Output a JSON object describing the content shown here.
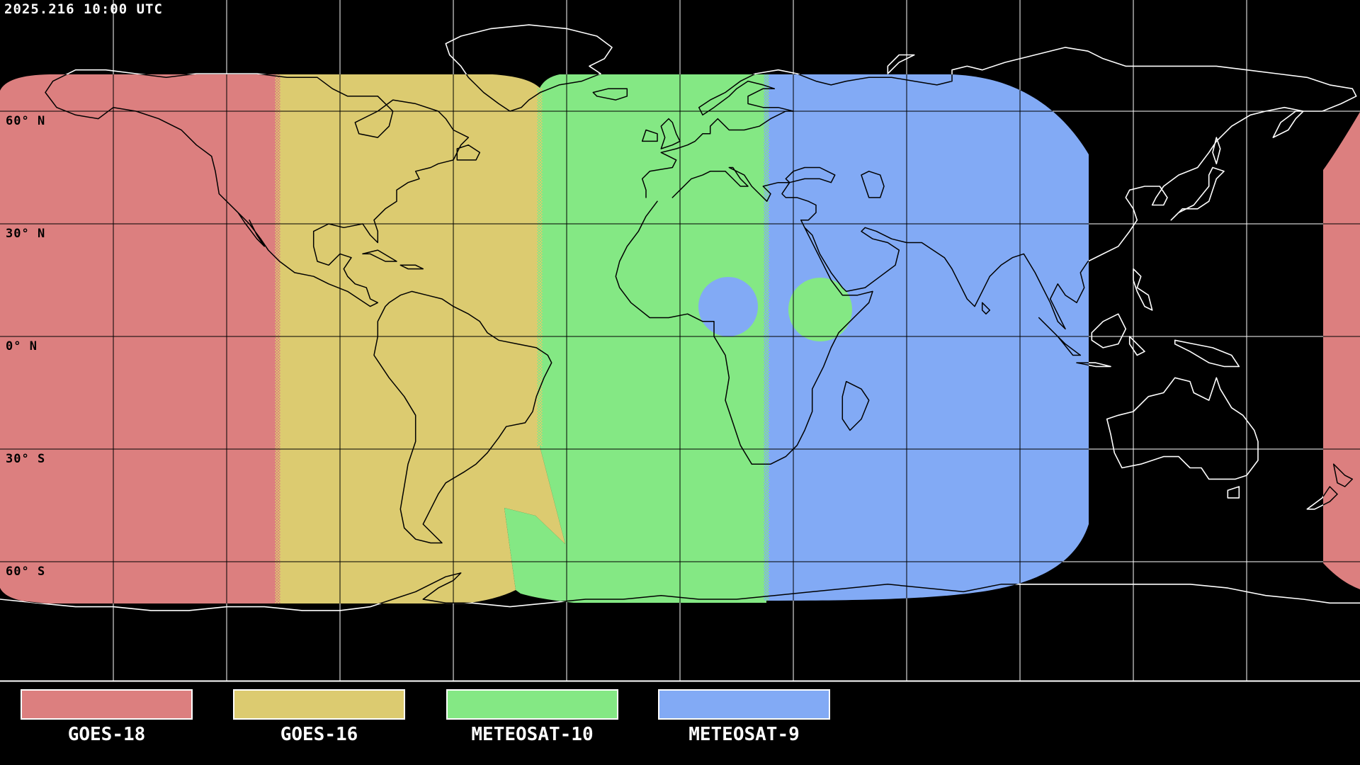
{
  "timestamp": "2025.216 10:00 UTC",
  "map": {
    "latitude_labels": [
      "60° N",
      "30° N",
      "0° N",
      "30° S",
      "60° S"
    ],
    "grid": {
      "lon_step_deg": 30,
      "lat_step_deg": 30
    },
    "colors": {
      "background": "#000000",
      "gridline_over_zone": "#000000",
      "gridline_over_space": "#ffffff",
      "coastline_over_zone": "#000000",
      "coastline_over_space": "#ffffff",
      "frame": "#ffffff"
    }
  },
  "legend": {
    "items": [
      {
        "label": "GOES-18",
        "color": "#dc7f7f"
      },
      {
        "label": "GOES-16",
        "color": "#dccb70"
      },
      {
        "label": "METEOSAT-10",
        "color": "#84e884"
      },
      {
        "label": "METEOSAT-9",
        "color": "#82aaf5"
      }
    ]
  }
}
